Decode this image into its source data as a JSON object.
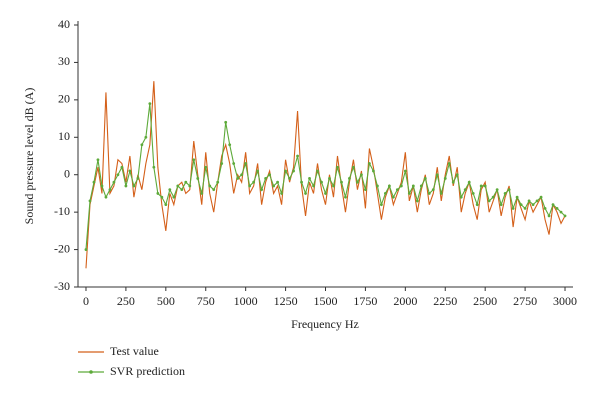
{
  "chart_data": {
    "type": "line",
    "xlabel": "Frequency Hz",
    "ylabel": "Sound pressure level dB (A)",
    "x": [
      0,
      25,
      50,
      75,
      100,
      125,
      150,
      175,
      200,
      225,
      250,
      275,
      300,
      325,
      350,
      375,
      400,
      425,
      450,
      475,
      500,
      525,
      550,
      575,
      600,
      625,
      650,
      675,
      700,
      725,
      750,
      775,
      800,
      825,
      850,
      875,
      900,
      925,
      950,
      975,
      1000,
      1025,
      1050,
      1075,
      1100,
      1125,
      1150,
      1175,
      1200,
      1225,
      1250,
      1275,
      1300,
      1325,
      1350,
      1375,
      1400,
      1425,
      1450,
      1475,
      1500,
      1525,
      1550,
      1575,
      1600,
      1625,
      1650,
      1675,
      1700,
      1725,
      1750,
      1775,
      1800,
      1825,
      1850,
      1875,
      1900,
      1925,
      1950,
      1975,
      2000,
      2025,
      2050,
      2075,
      2100,
      2125,
      2150,
      2175,
      2200,
      2225,
      2250,
      2275,
      2300,
      2325,
      2350,
      2375,
      2400,
      2425,
      2450,
      2475,
      2500,
      2525,
      2550,
      2575,
      2600,
      2625,
      2650,
      2675,
      2700,
      2725,
      2750,
      2775,
      2800,
      2825,
      2850,
      2875,
      2900,
      2925,
      2950,
      2975,
      3000
    ],
    "series": [
      {
        "name": "Test value",
        "color": "#d4601a",
        "marker": false,
        "values": [
          -25,
          -8,
          -3,
          2,
          -5,
          22,
          -5,
          -3,
          4,
          3,
          -2,
          5,
          -6,
          0,
          -4,
          3,
          8,
          25,
          2,
          -8,
          -15,
          -5,
          -8,
          -3,
          -2,
          -5,
          -4,
          9,
          0,
          -8,
          6,
          -5,
          -10,
          -2,
          5,
          8,
          3,
          -5,
          0,
          -2,
          6,
          -5,
          -3,
          3,
          -8,
          -2,
          1,
          -5,
          -3,
          -8,
          4,
          -2,
          2,
          17,
          -3,
          -11,
          -2,
          -5,
          3,
          -4,
          -8,
          0,
          -6,
          5,
          -3,
          -10,
          -2,
          4,
          -4,
          1,
          -9,
          7,
          2,
          -5,
          -12,
          -6,
          -3,
          -8,
          -5,
          -2,
          6,
          -7,
          -3,
          -10,
          -4,
          0,
          -8,
          -5,
          2,
          -7,
          0,
          5,
          -3,
          2,
          -10,
          -5,
          -2,
          -8,
          -12,
          -4,
          -2,
          -10,
          -7,
          -4,
          -11,
          -6,
          -3,
          -14,
          -6,
          -9,
          -12,
          -7,
          -10,
          -8,
          -6,
          -12,
          -16,
          -8,
          -10,
          -13,
          -11
        ]
      },
      {
        "name": "SVR prediction",
        "color": "#5daa3a",
        "marker": true,
        "values": [
          -20,
          -7,
          -2,
          4,
          -3,
          -6,
          -4,
          -2,
          0,
          2,
          -3,
          1,
          -3,
          -1,
          8,
          10,
          19,
          2,
          -5,
          -6,
          -8,
          -4,
          -6,
          -3,
          -4,
          -2,
          -3,
          4,
          -1,
          -5,
          2,
          -3,
          -4,
          -2,
          3,
          14,
          8,
          3,
          -1,
          0,
          3,
          -3,
          -2,
          1,
          -4,
          -1,
          0,
          -3,
          -2,
          -5,
          1,
          -1,
          1,
          5,
          -2,
          -5,
          -1,
          -3,
          1,
          -2,
          -5,
          -1,
          -3,
          2,
          -2,
          -6,
          -1,
          2,
          -2,
          0,
          -4,
          3,
          1,
          -3,
          -8,
          -5,
          -3,
          -6,
          -4,
          -3,
          1,
          -5,
          -3,
          -7,
          -3,
          -1,
          -5,
          -4,
          0,
          -5,
          -1,
          3,
          -2,
          0,
          -6,
          -4,
          -2,
          -5,
          -8,
          -3,
          -3,
          -7,
          -6,
          -4,
          -8,
          -5,
          -4,
          -9,
          -6,
          -8,
          -9,
          -7,
          -8,
          -7,
          -6,
          -9,
          -11,
          -8,
          -9,
          -10,
          -11
        ]
      }
    ],
    "xlim": [
      -50,
      3050
    ],
    "xticks": [
      0,
      250,
      500,
      750,
      1000,
      1250,
      1500,
      1750,
      2000,
      2250,
      2500,
      2750,
      3000
    ],
    "ylim": [
      -30,
      40
    ],
    "yticks": [
      -30,
      -20,
      -10,
      0,
      10,
      20,
      30,
      40
    ]
  }
}
